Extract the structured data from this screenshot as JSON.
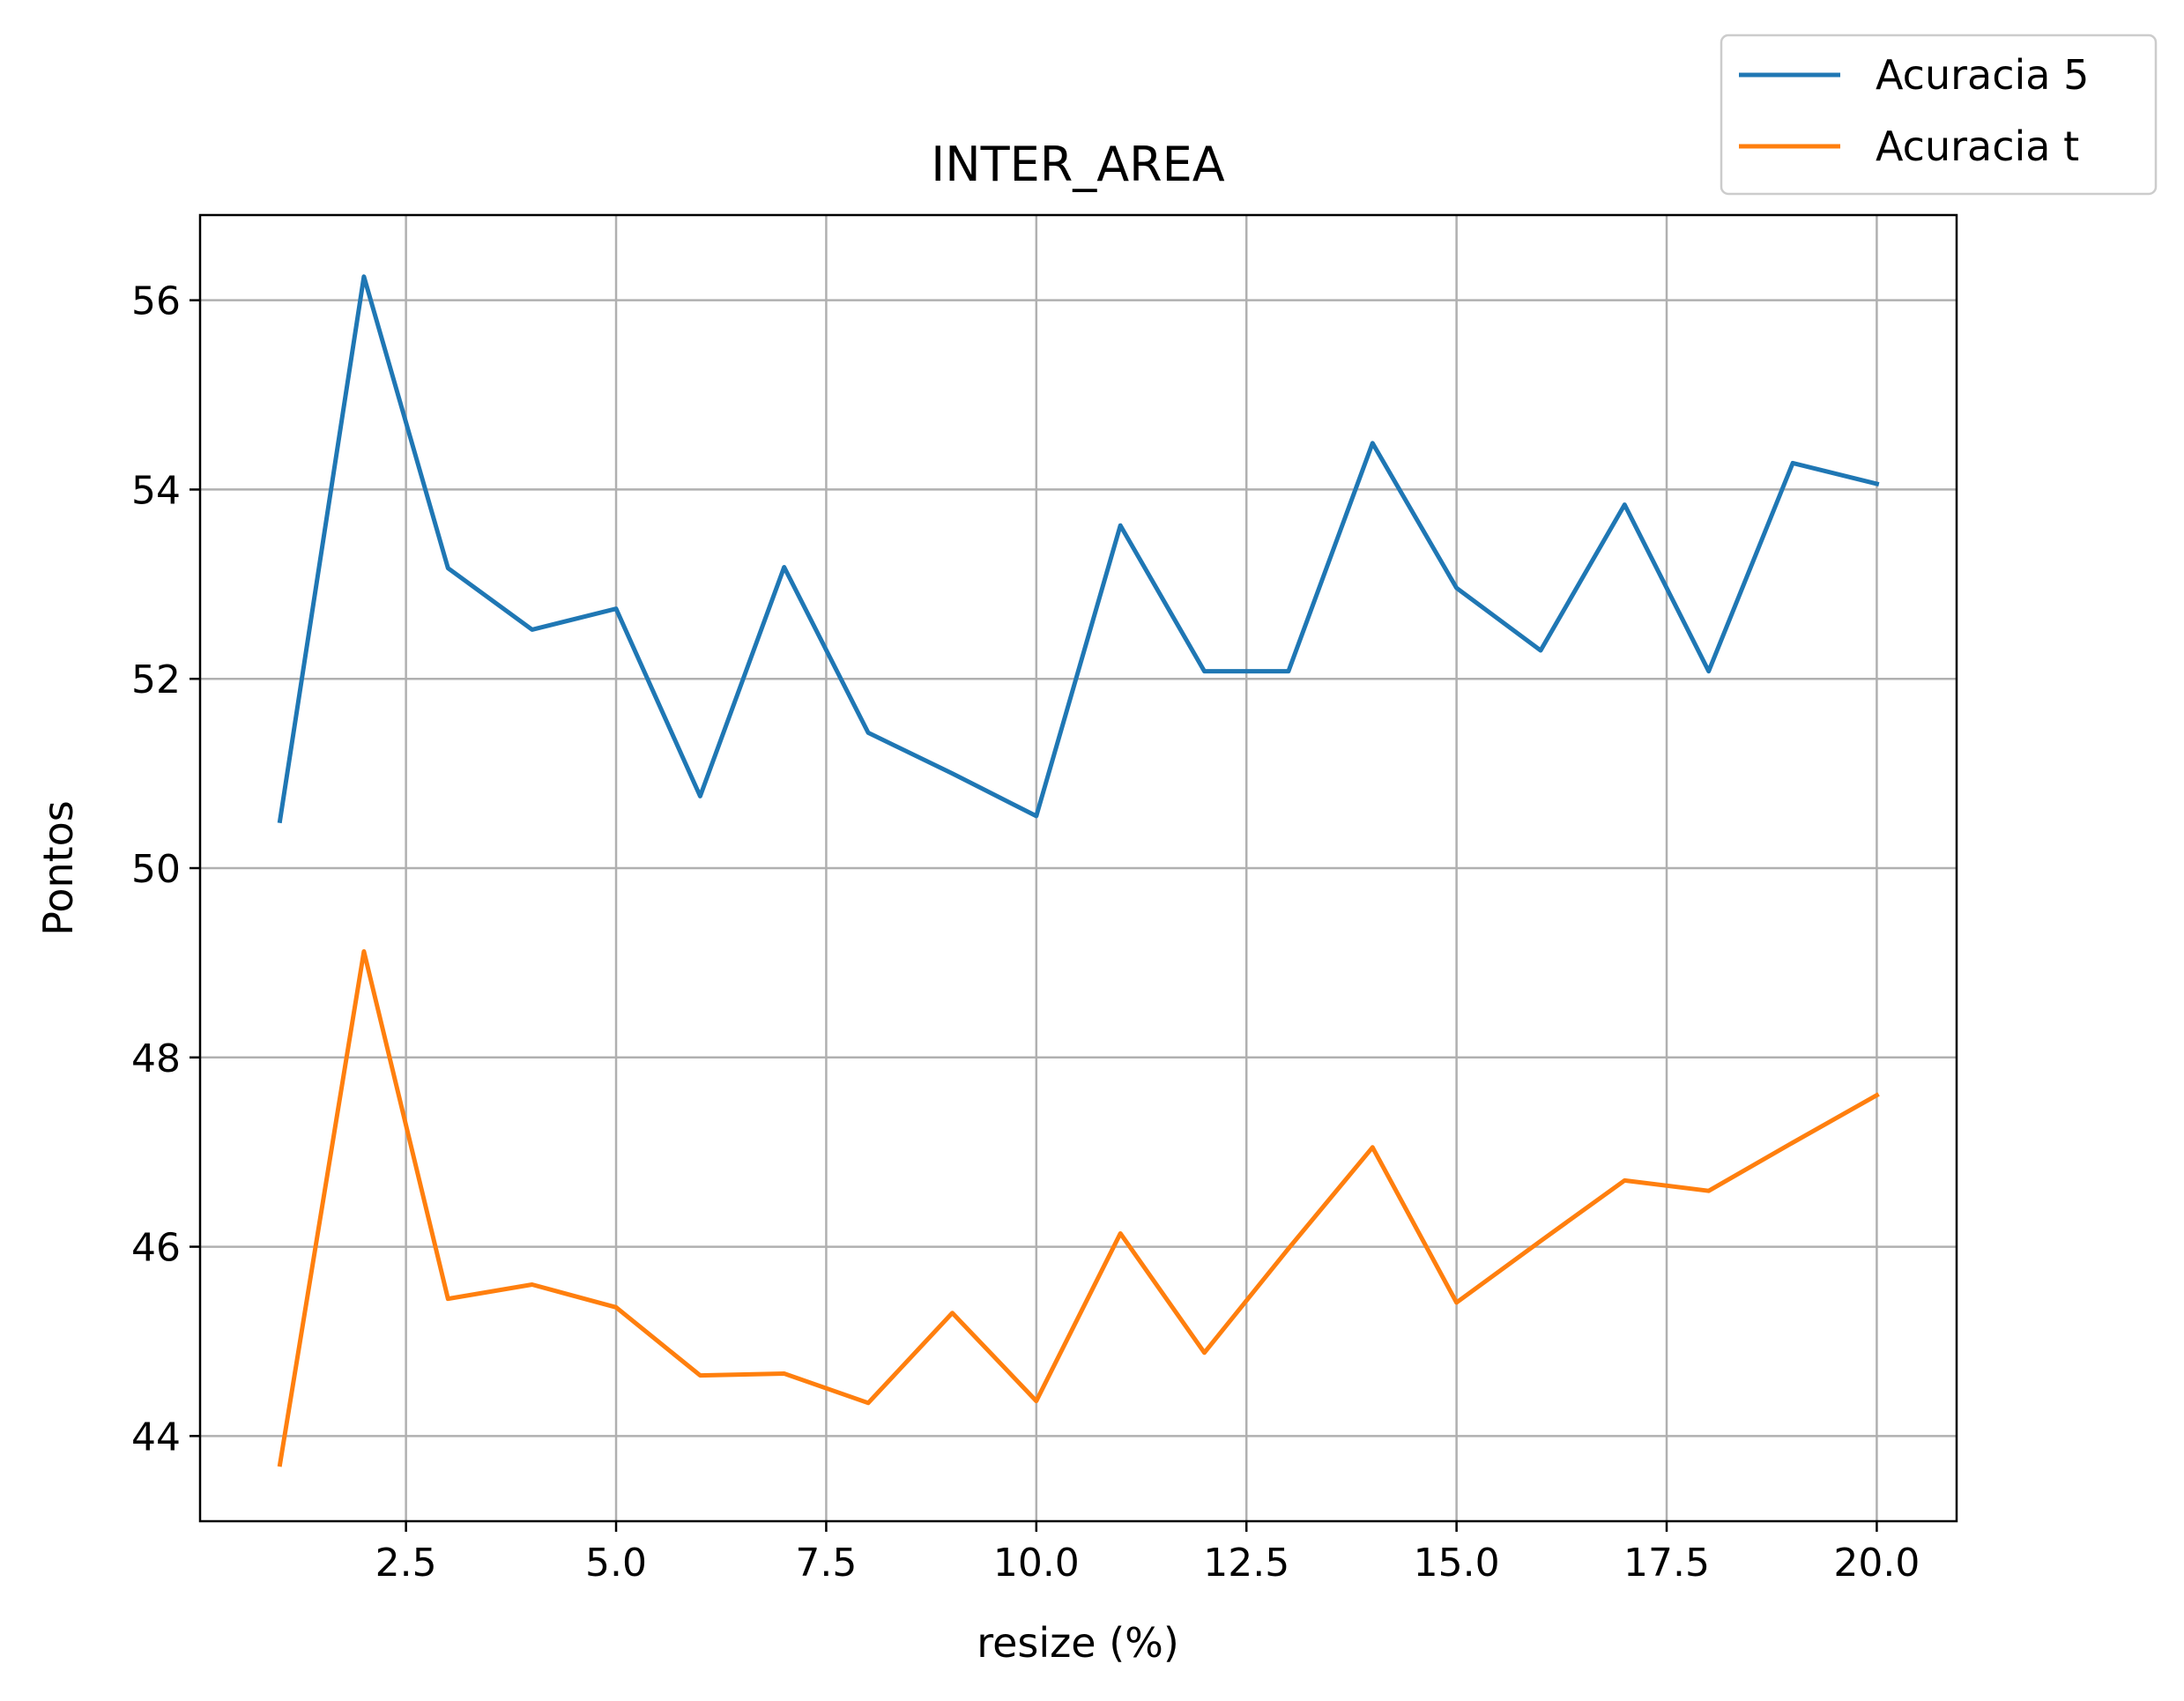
{
  "chart_data": {
    "type": "line",
    "title": "INTER_AREA",
    "xlabel": "resize (%)",
    "ylabel": "Pontos",
    "xlim": [
      0.05,
      20.95
    ],
    "ylim": [
      43.1,
      56.9
    ],
    "xticks": [
      2.5,
      5.0,
      7.5,
      10.0,
      12.5,
      15.0,
      17.5,
      20.0
    ],
    "xtick_labels": [
      "2.5",
      "5.0",
      "7.5",
      "10.0",
      "12.5",
      "15.0",
      "17.5",
      "20.0"
    ],
    "yticks": [
      44,
      46,
      48,
      50,
      52,
      54,
      56
    ],
    "ytick_labels": [
      "44",
      "46",
      "48",
      "50",
      "52",
      "54",
      "56"
    ],
    "grid": true,
    "legend_position": "top-right (outside axes)",
    "x": [
      1,
      2,
      3,
      4,
      5,
      6,
      7,
      8,
      9,
      10,
      11,
      12,
      13,
      14,
      15,
      16,
      17,
      18,
      19,
      20
    ],
    "series": [
      {
        "name": "Acuracia 5",
        "color": "#1f77b4",
        "values": [
          50.5,
          56.25,
          53.17,
          52.52,
          52.74,
          50.76,
          53.18,
          51.43,
          51.0,
          50.55,
          53.62,
          52.08,
          52.08,
          54.49,
          52.96,
          52.3,
          53.84,
          52.08,
          54.28,
          54.06
        ]
      },
      {
        "name": "Acuracia t",
        "color": "#ff7f0e",
        "values": [
          43.7,
          49.12,
          45.45,
          45.6,
          45.36,
          44.64,
          44.66,
          44.35,
          45.3,
          44.37,
          46.14,
          44.88,
          45.98,
          47.05,
          45.41,
          46.06,
          46.7,
          46.59,
          47.1,
          47.6
        ]
      }
    ]
  }
}
